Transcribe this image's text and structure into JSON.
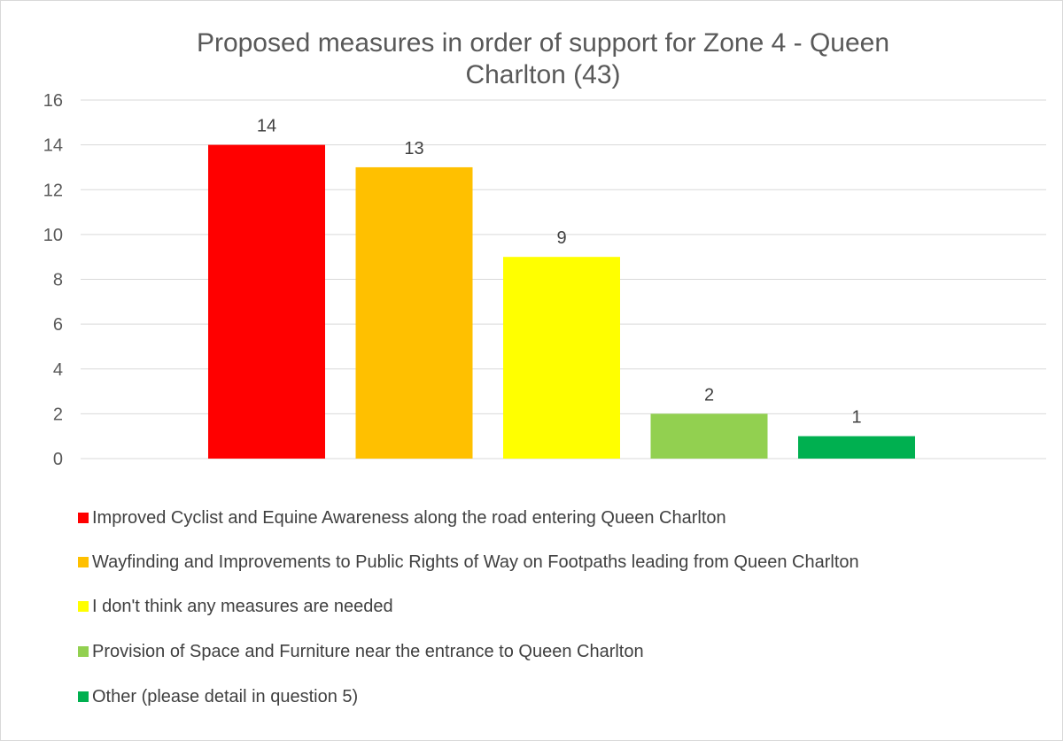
{
  "chart_data": {
    "type": "bar",
    "title_lines": [
      "Proposed measures in order of support for Zone 4 - Queen",
      "Charlton (43)"
    ],
    "categories": [
      "Improved Cyclist and Equine Awareness along the road entering Queen Charlton",
      "Wayfinding and Improvements to Public Rights of Way on Footpaths leading from Queen Charlton",
      "I don't think any measures are needed",
      "Provision of Space and Furniture near the entrance to Queen Charlton",
      "Other (please detail in question 5)"
    ],
    "values": [
      14,
      13,
      9,
      2,
      1
    ],
    "colors": [
      "#ff0000",
      "#ffc000",
      "#ffff00",
      "#92d050",
      "#00b050"
    ],
    "data_labels": [
      "14",
      "13",
      "9",
      "2",
      "1"
    ],
    "ylim": [
      0,
      16
    ],
    "yticks": [
      "0",
      "2",
      "4",
      "6",
      "8",
      "10",
      "12",
      "14",
      "16"
    ],
    "grid": true,
    "legend_position": "bottom"
  }
}
